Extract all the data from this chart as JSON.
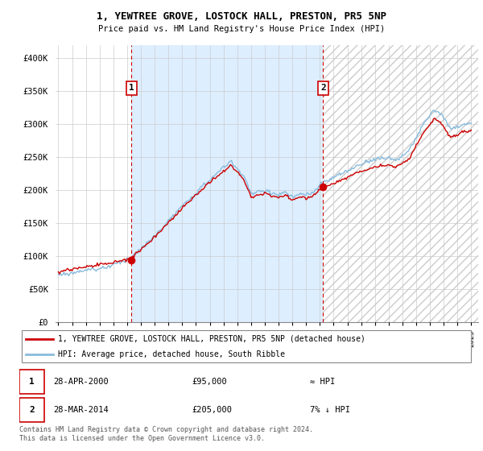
{
  "title1": "1, YEWTREE GROVE, LOSTOCK HALL, PRESTON, PR5 5NP",
  "title2": "Price paid vs. HM Land Registry's House Price Index (HPI)",
  "ylabel_ticks": [
    "£0",
    "£50K",
    "£100K",
    "£150K",
    "£200K",
    "£250K",
    "£300K",
    "£350K",
    "£400K"
  ],
  "ytick_values": [
    0,
    50000,
    100000,
    150000,
    200000,
    250000,
    300000,
    350000,
    400000
  ],
  "ylim": [
    0,
    420000
  ],
  "xlim_start": 1994.8,
  "xlim_end": 2025.5,
  "xticks": [
    1995,
    1996,
    1997,
    1998,
    1999,
    2000,
    2001,
    2002,
    2003,
    2004,
    2005,
    2006,
    2007,
    2008,
    2009,
    2010,
    2011,
    2012,
    2013,
    2014,
    2015,
    2016,
    2017,
    2018,
    2019,
    2020,
    2021,
    2022,
    2023,
    2024,
    2025
  ],
  "sale1_x": 2000.32,
  "sale1_y": 95000,
  "sale1_label": "1",
  "sale2_x": 2014.24,
  "sale2_y": 205000,
  "sale2_label": "2",
  "vline1_x": 2000.32,
  "vline2_x": 2014.24,
  "shade_color": "#ddeeff",
  "legend_line1": "1, YEWTREE GROVE, LOSTOCK HALL, PRESTON, PR5 5NP (detached house)",
  "legend_line2": "HPI: Average price, detached house, South Ribble",
  "table_row1_num": "1",
  "table_row1_date": "28-APR-2000",
  "table_row1_price": "£95,000",
  "table_row1_hpi": "≈ HPI",
  "table_row2_num": "2",
  "table_row2_date": "28-MAR-2014",
  "table_row2_price": "£205,000",
  "table_row2_hpi": "7% ↓ HPI",
  "footnote": "Contains HM Land Registry data © Crown copyright and database right 2024.\nThis data is licensed under the Open Government Licence v3.0.",
  "line_color_red": "#cc0000",
  "line_color_blue": "#88bbdd",
  "vline_color": "#cc0000",
  "marker_color_red": "#cc0000",
  "box_color": "#cc0000",
  "background_color": "#ffffff",
  "grid_color": "#cccccc",
  "hatch_color": "#cccccc"
}
